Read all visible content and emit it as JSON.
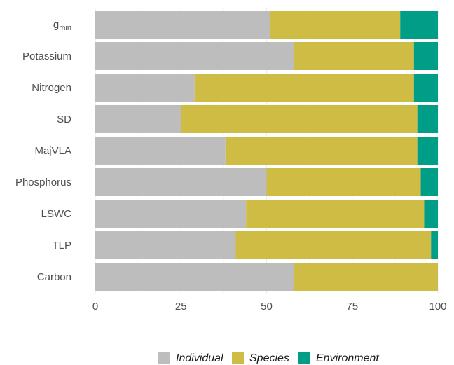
{
  "chart_data": {
    "type": "bar",
    "orientation": "horizontal",
    "stacked": true,
    "categories": [
      "g_min",
      "Potassium",
      "Nitrogen",
      "SD",
      "MajVLA",
      "Phosphorus",
      "LSWC",
      "TLP",
      "Carbon"
    ],
    "category_labels": [
      {
        "base": "g",
        "sub": "min"
      },
      {
        "base": "Potassium",
        "sub": ""
      },
      {
        "base": "Nitrogen",
        "sub": ""
      },
      {
        "base": "SD",
        "sub": ""
      },
      {
        "base": "MajVLA",
        "sub": ""
      },
      {
        "base": "Phosphorus",
        "sub": ""
      },
      {
        "base": "LSWC",
        "sub": ""
      },
      {
        "base": "TLP",
        "sub": ""
      },
      {
        "base": "Carbon",
        "sub": ""
      }
    ],
    "series": [
      {
        "name": "Individual",
        "color": "#bdbdbd",
        "values": [
          51,
          58,
          29,
          25,
          38,
          50,
          44,
          41,
          58
        ]
      },
      {
        "name": "Species",
        "color": "#cfbc45",
        "values": [
          38,
          35,
          64,
          69,
          56,
          45,
          52,
          57,
          42
        ]
      },
      {
        "name": "Environment",
        "color": "#009e87",
        "values": [
          11,
          7,
          7,
          6,
          6,
          5,
          4,
          2,
          0
        ]
      }
    ],
    "xlim": [
      0,
      100
    ],
    "xticks": [
      "0",
      "25",
      "50",
      "75",
      "100"
    ],
    "grid": true,
    "legend_position": "bottom"
  }
}
